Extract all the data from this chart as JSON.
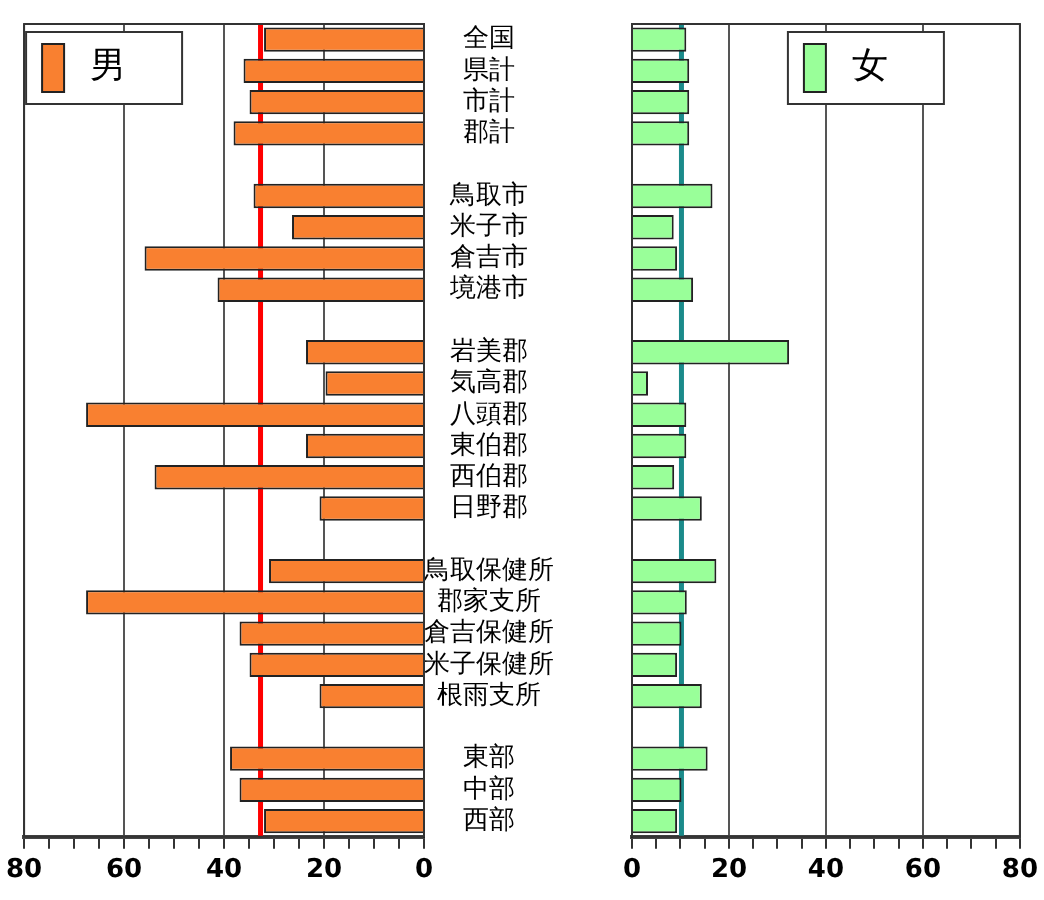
{
  "chart_data": [
    {
      "type": "bar",
      "orientation": "horizontal",
      "categories": [
        "全国",
        "県計",
        "市計",
        "郡計",
        null,
        "鳥取市",
        "米子市",
        "倉吉市",
        "境港市",
        null,
        "岩美郡",
        "気高郡",
        "八頭郡",
        "東伯郡",
        "西伯郡",
        "日野郡",
        null,
        "鳥取保健所",
        "郡家支所",
        "倉吉保健所",
        "米子保健所",
        "根雨支所",
        null,
        "東部",
        "中部",
        "西部"
      ],
      "series": [
        {
          "name": "男",
          "color": "#f98030",
          "values": [
            32.0,
            36.1,
            34.9,
            38.1,
            null,
            34.1,
            26.4,
            55.9,
            41.3,
            null,
            23.6,
            19.7,
            67.6,
            23.6,
            53.9,
            20.9,
            null,
            31.0,
            67.6,
            36.9,
            34.9,
            20.9,
            null,
            38.8,
            36.9,
            32.0
          ]
        }
      ],
      "xlim": [
        80,
        0
      ],
      "xticks": [
        {
          "value": 80,
          "label": "80"
        },
        {
          "value": 75,
          "label": null
        },
        {
          "value": 70,
          "label": null
        },
        {
          "value": 65,
          "label": null
        },
        {
          "value": 60,
          "label": "60"
        },
        {
          "value": 55,
          "label": null
        },
        {
          "value": 50,
          "label": null
        },
        {
          "value": 45,
          "label": null
        },
        {
          "value": 40,
          "label": "40"
        },
        {
          "value": 35,
          "label": null
        },
        {
          "value": 30,
          "label": null
        },
        {
          "value": 25,
          "label": null
        },
        {
          "value": 20,
          "label": "20"
        },
        {
          "value": 15,
          "label": null
        },
        {
          "value": 10,
          "label": null
        },
        {
          "value": 5,
          "label": null
        },
        {
          "value": 0,
          "label": "0"
        }
      ],
      "ref_lines": [
        {
          "axis": "x",
          "value": 32.7,
          "color": "#ff0000"
        }
      ],
      "grid": "x",
      "legend": "top left"
    },
    {
      "type": "bar",
      "orientation": "horizontal",
      "categories": [
        null,
        null,
        null,
        null,
        null,
        null,
        null,
        null,
        null,
        null,
        null,
        null,
        null,
        null,
        null,
        null,
        null,
        null,
        null,
        null,
        null,
        null,
        null,
        null,
        null,
        null
      ],
      "series": [
        {
          "name": "女",
          "color": "#99ff99",
          "values": [
            11.2,
            11.8,
            11.8,
            11.8,
            null,
            16.6,
            8.6,
            9.3,
            12.6,
            null,
            32.4,
            3.3,
            11.2,
            11.2,
            8.7,
            14.4,
            null,
            17.4,
            11.3,
            10.2,
            9.3,
            14.4,
            null,
            15.6,
            10.2,
            9.3
          ]
        }
      ],
      "xlim": [
        0,
        80
      ],
      "xticks": [
        {
          "value": 0,
          "label": "0"
        },
        {
          "value": 5,
          "label": null
        },
        {
          "value": 10,
          "label": null
        },
        {
          "value": 15,
          "label": null
        },
        {
          "value": 20,
          "label": "20"
        },
        {
          "value": 25,
          "label": null
        },
        {
          "value": 30,
          "label": null
        },
        {
          "value": 35,
          "label": null
        },
        {
          "value": 40,
          "label": "40"
        },
        {
          "value": 45,
          "label": null
        },
        {
          "value": 50,
          "label": null
        },
        {
          "value": 55,
          "label": null
        },
        {
          "value": 60,
          "label": "60"
        },
        {
          "value": 65,
          "label": null
        },
        {
          "value": 70,
          "label": null
        },
        {
          "value": 75,
          "label": null
        },
        {
          "value": 80,
          "label": "80"
        }
      ],
      "ref_lines": [
        {
          "axis": "x",
          "value": 10.2,
          "color": "#1a8a8a"
        }
      ],
      "grid": "x",
      "legend": "top right",
      "tick_labels": "x"
    }
  ]
}
